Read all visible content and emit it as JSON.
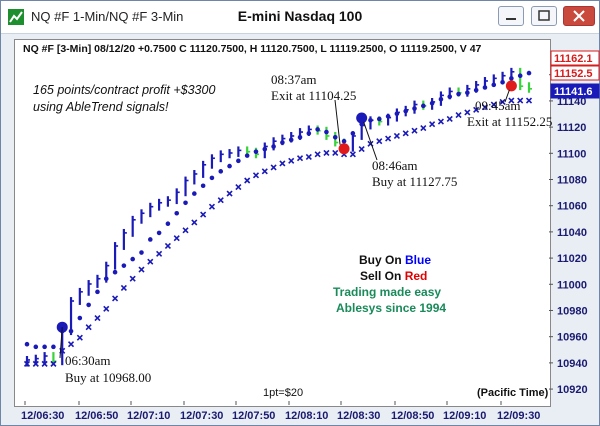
{
  "window": {
    "title": "NQ #F 1-Min/NQ #F 3-Min"
  },
  "chart_data": {
    "type": "line",
    "title": "E-mini Nasdaq 100",
    "info": "NQ #F [3-Min] 08/12/20 +0.7500 C 11120.7500, H 11120.7500, L 11119.2500, O 11119.2500, V 47",
    "annotations": {
      "profit": [
        "165 points/contract profit +$3300",
        "using AbleTrend signals!"
      ],
      "entry1": [
        "06:30am",
        "Buy at 10968.00"
      ],
      "exit1": [
        "08:37am",
        "Exit at 11104.25"
      ],
      "entry2": [
        "08:46am",
        "Buy at 11127.75"
      ],
      "exit2": [
        "09:45am",
        "Exit at 11152.25"
      ],
      "legend_buy_prefix": "Buy On ",
      "legend_buy_word": "Blue",
      "legend_sell_prefix": "Sell On ",
      "legend_sell_word": "Red",
      "legend_line3": "Trading made easy",
      "legend_line4": "Ablesys since 1994",
      "point_value": "1pt=$20",
      "timezone": "(Pacific Time)"
    },
    "x_ticks": [
      "12/06:30",
      "12/06:50",
      "12/07:10",
      "12/07:30",
      "12/07:50",
      "12/08:10",
      "12/08:30",
      "12/08:50",
      "12/09:10",
      "12/09:30"
    ],
    "y_ticks": [
      10920,
      10940,
      10960,
      10980,
      11000,
      11020,
      11040,
      11060,
      11080,
      11100,
      11120,
      11140,
      11160
    ],
    "ylim": [
      10917,
      11172
    ],
    "price_labels": [
      {
        "value": 11162.1,
        "label": "11162.1",
        "color": "#d81b1b"
      },
      {
        "value": 11152.5,
        "label": "11152.5",
        "color": "#d81b1b"
      },
      {
        "value": 11141.6,
        "label": "11141.6",
        "color": "#1a1ab8"
      }
    ],
    "series": [
      {
        "role": "price",
        "close": [
          10943,
          10944,
          10946,
          10942,
          10965,
          10988,
          10995,
          11001,
          11005,
          11015,
          11030,
          11040,
          11050,
          11055,
          11060,
          11063,
          11065,
          11071,
          11080,
          11085,
          11092,
          11097,
          11100,
          11101,
          11103,
          11102,
          11100,
          11106,
          11110,
          11112,
          11114,
          11117,
          11119,
          11118,
          11114,
          11109,
          11105,
          11114,
          11122,
          11126,
          11125,
          11128,
          11132,
          11134,
          11138,
          11137,
          11140,
          11145,
          11148,
          11147,
          11150,
          11153,
          11156,
          11158,
          11160,
          11163,
          11152,
          11150
        ]
      },
      {
        "role": "stop-upper",
        "values": [
          10955,
          10953,
          10953,
          10953,
          10965,
          10965,
          10975,
          10985,
          10995,
          11005,
          11010,
          11015,
          11020,
          11025,
          11035,
          11040,
          11047,
          11055,
          11063,
          11070,
          11076,
          11082,
          11087,
          11091,
          11095,
          11099,
          11102,
          11104,
          11106,
          11109,
          11111,
          11113,
          11116,
          11119,
          11117,
          11113,
          11110,
          11116,
          11123,
          11126,
          11127,
          11129,
          11131,
          11133,
          11135,
          11137,
          11139,
          11142,
          11144,
          11146,
          11147,
          11149,
          11151,
          11153,
          11155,
          11158,
          11160,
          11162
        ]
      },
      {
        "role": "stop-lower",
        "values": [
          10940,
          10940,
          10940,
          10940,
          10950,
          10955,
          10960,
          10968,
          10975,
          10982,
          10990,
          10998,
          11005,
          11012,
          11018,
          11024,
          11030,
          11036,
          11042,
          11048,
          11054,
          11060,
          11065,
          11070,
          11075,
          11080,
          11084,
          11087,
          11090,
          11093,
          11095,
          11097,
          11098,
          11100,
          11101,
          11101,
          11100,
          11100,
          11104,
          11108,
          11110,
          11112,
          11114,
          11116,
          11118,
          11120,
          11123,
          11125,
          11127,
          11130,
          11132,
          11134,
          11136,
          11138,
          11140,
          11141,
          11141,
          11141
        ]
      }
    ],
    "signals": [
      {
        "type": "buy",
        "index": 4,
        "value": 10968
      },
      {
        "type": "sell",
        "index": 36,
        "value": 11104.25
      },
      {
        "type": "buy",
        "index": 38,
        "value": 11127.75
      },
      {
        "type": "sell",
        "index": 55,
        "value": 11152.25
      }
    ],
    "colors": {
      "up": "#1a1ab8",
      "down": "#38d23a",
      "stop": "#1a1ab8",
      "sell": "#e01a1a",
      "buy_text": "#0000ff",
      "sell_text": "#e00000",
      "tagline": "#1a8a5a"
    }
  }
}
